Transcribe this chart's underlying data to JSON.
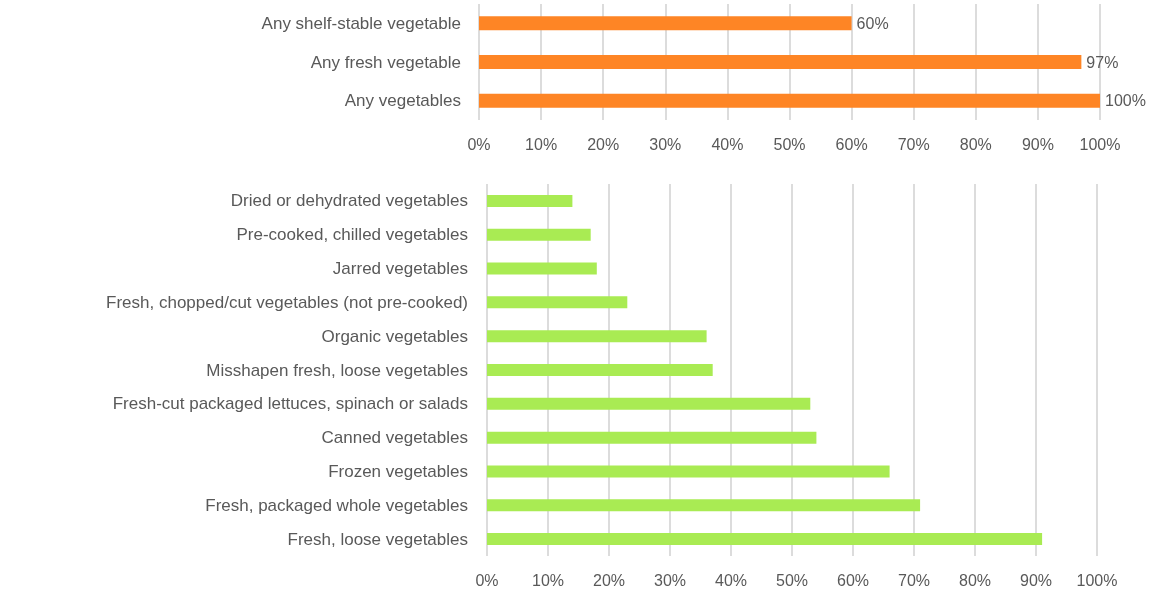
{
  "chart_data": [
    {
      "type": "bar",
      "orientation": "horizontal",
      "categories": [
        "Any shelf-stable vegetable",
        "Any fresh vegetable",
        "Any vegetables"
      ],
      "values": [
        60,
        97,
        100
      ],
      "color": "#fe8525",
      "value_labels": [
        "60%",
        "97%",
        "100%"
      ],
      "xlim": [
        0,
        100
      ],
      "xticks": [
        {
          "value": 0,
          "label": "0%"
        },
        {
          "value": 10,
          "label": "10%"
        },
        {
          "value": 20,
          "label": "20%"
        },
        {
          "value": 30,
          "label": "30%"
        },
        {
          "value": 40,
          "label": "40%"
        },
        {
          "value": 50,
          "label": "50%"
        },
        {
          "value": 60,
          "label": "60%"
        },
        {
          "value": 70,
          "label": "70%"
        },
        {
          "value": 80,
          "label": "80%"
        },
        {
          "value": 90,
          "label": "90%"
        },
        {
          "value": 100,
          "label": "100%"
        }
      ],
      "grid": "x"
    },
    {
      "type": "bar",
      "orientation": "horizontal",
      "categories": [
        "Dried or dehydrated vegetables",
        "Pre-cooked, chilled vegetables",
        "Jarred vegetables",
        "Fresh, chopped/cut vegetables (not pre-cooked)",
        "Organic vegetables",
        "Misshapen fresh, loose vegetables",
        "Fresh-cut packaged lettuces, spinach or salads",
        "Canned vegetables",
        "Frozen vegetables",
        "Fresh, packaged whole vegetables",
        "Fresh, loose vegetables"
      ],
      "values": [
        14,
        17,
        18,
        23,
        36,
        37,
        53,
        54,
        66,
        71,
        91
      ],
      "color": "#a9eb53",
      "xlim": [
        0,
        100
      ],
      "xticks": [
        {
          "value": 0,
          "label": "0%"
        },
        {
          "value": 10,
          "label": "10%"
        },
        {
          "value": 20,
          "label": "20%"
        },
        {
          "value": 30,
          "label": "30%"
        },
        {
          "value": 40,
          "label": "40%"
        },
        {
          "value": 50,
          "label": "50%"
        },
        {
          "value": 60,
          "label": "60%"
        },
        {
          "value": 70,
          "label": "70%"
        },
        {
          "value": 80,
          "label": "80%"
        },
        {
          "value": 90,
          "label": "90%"
        },
        {
          "value": 100,
          "label": "100%"
        }
      ],
      "grid": "x"
    }
  ]
}
